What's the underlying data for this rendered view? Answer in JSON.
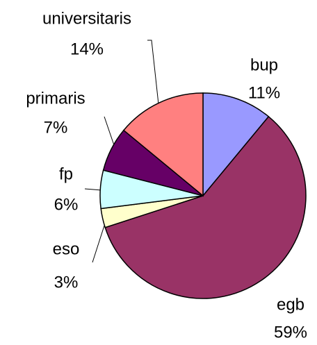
{
  "chart_data": {
    "type": "pie",
    "categories": [
      "bup",
      "egb",
      "eso",
      "fp",
      "primaris",
      "universitaris"
    ],
    "values": [
      11,
      59,
      3,
      6,
      7,
      14
    ],
    "value_labels": [
      "11%",
      "59%",
      "3%",
      "6%",
      "7%",
      "14%"
    ],
    "colors": [
      "#9999ff",
      "#993366",
      "#ffffcc",
      "#ccffff",
      "#660066",
      "#ff8080"
    ]
  }
}
